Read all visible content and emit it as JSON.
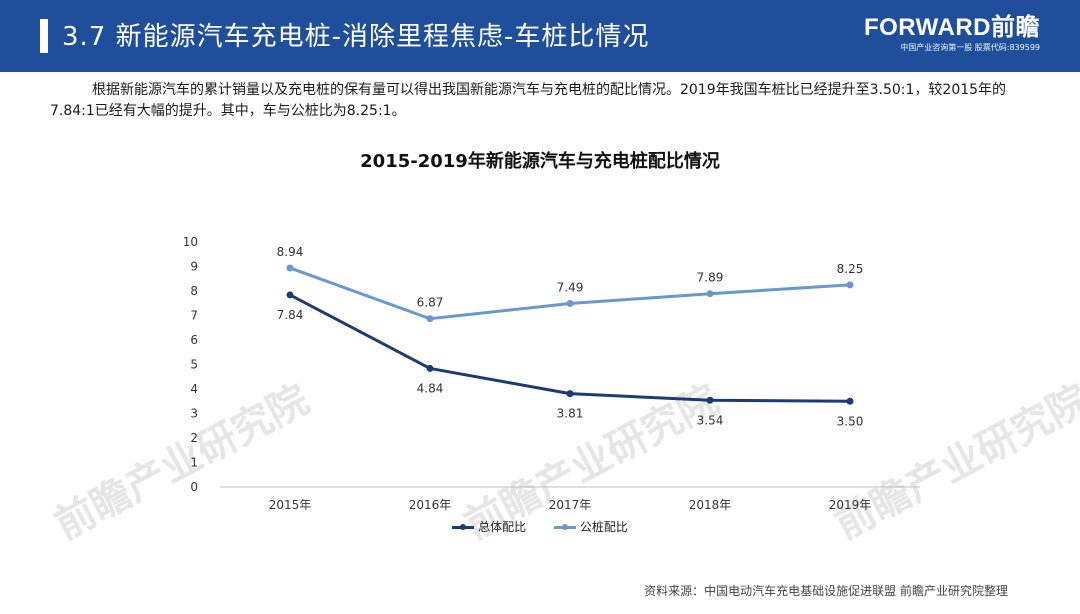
{
  "header": {
    "title": "3.7 新能源汽车充电桩-消除里程焦虑-车桩比情况",
    "brand": "FORWARD前瞻",
    "brand_sub": "中国产业咨询第一股  股票代码:839599"
  },
  "intro": "根据新能源汽车的累计销量以及充电桩的保有量可以得出我国新能源汽车与充电桩的配比情况。2019年我国车桩比已经提升至3.50:1，较2015年的7.84:1已经有大幅的提升。其中，车与公桩比为8.25:1。",
  "source": "资料来源：中国电动汽车充电基础设施促进联盟 前瞻产业研究院整理",
  "watermark_text": "前瞻产业研究院",
  "chart_data": {
    "type": "line",
    "title": "2015-2019年新能源汽车与充电桩配比情况",
    "categories": [
      "2015年",
      "2016年",
      "2017年",
      "2018年",
      "2019年"
    ],
    "ylim": [
      0,
      10
    ],
    "yticks": [
      0,
      1,
      2,
      3,
      4,
      5,
      6,
      7,
      8,
      9,
      10
    ],
    "grid": false,
    "legend": "bottom",
    "series": [
      {
        "name": "总体配比",
        "values": [
          7.84,
          4.84,
          3.81,
          3.54,
          3.5
        ],
        "labels": [
          "7.84",
          "4.84",
          "3.81",
          "3.54",
          "3.50"
        ],
        "color": "#1f3a73",
        "label_pos": "below"
      },
      {
        "name": "公桩配比",
        "values": [
          8.94,
          6.87,
          7.49,
          7.89,
          8.25
        ],
        "labels": [
          "8.94",
          "6.87",
          "7.49",
          "7.89",
          "8.25"
        ],
        "color": "#6a97cf",
        "label_pos": "above"
      }
    ]
  }
}
